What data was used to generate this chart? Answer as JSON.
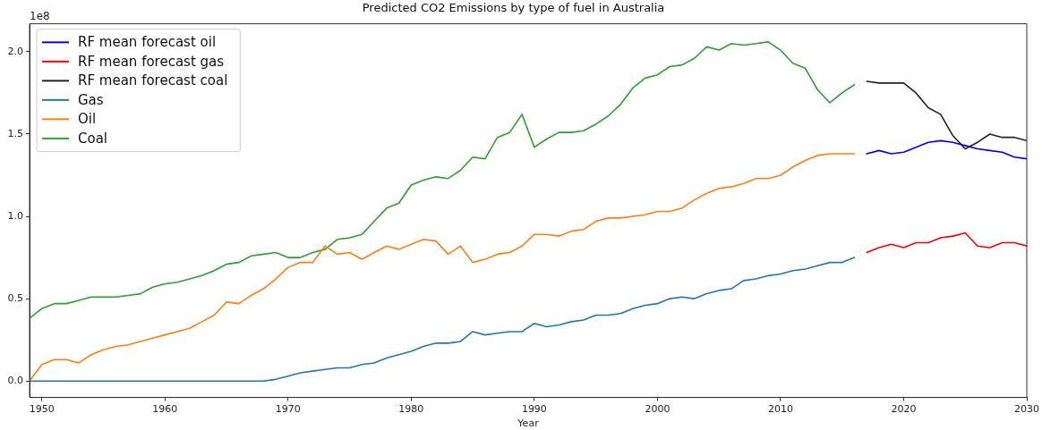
{
  "chart_data": {
    "type": "line",
    "title": "Predicted CO2 Emissions by type of fuel in Australia",
    "xlabel": "Year",
    "annotations": [
      "1e8"
    ],
    "xlim": [
      1949,
      2030
    ],
    "xticks": [
      1950,
      1960,
      1970,
      1980,
      1990,
      2000,
      2010,
      2020,
      2030
    ],
    "ylim": [
      -0.1,
      2.17
    ],
    "yticks": [
      {
        "value": 0,
        "label": "0.0"
      },
      {
        "value": 0.5,
        "label": "0.5"
      },
      {
        "value": 1,
        "label": "1.0"
      },
      {
        "value": 1.5,
        "label": "1.5"
      },
      {
        "value": 2,
        "label": "2.0"
      }
    ],
    "grid": false,
    "legend": "top left",
    "marker": "none",
    "line_style": "solid",
    "x": [
      1949,
      1950,
      1951,
      1952,
      1953,
      1954,
      1955,
      1956,
      1957,
      1958,
      1959,
      1960,
      1961,
      1962,
      1963,
      1964,
      1965,
      1966,
      1967,
      1968,
      1969,
      1970,
      1971,
      1972,
      1973,
      1974,
      1975,
      1976,
      1977,
      1978,
      1979,
      1980,
      1981,
      1982,
      1983,
      1984,
      1985,
      1986,
      1987,
      1988,
      1989,
      1990,
      1991,
      1992,
      1993,
      1994,
      1995,
      1996,
      1997,
      1998,
      1999,
      2000,
      2001,
      2002,
      2003,
      2004,
      2005,
      2006,
      2007,
      2008,
      2009,
      2010,
      2011,
      2012,
      2013,
      2014,
      2015,
      2016
    ],
    "series": [
      {
        "name": "RF mean forecast oil",
        "color": "#0000ff",
        "x": [
          2017,
          2018,
          2019,
          2020,
          2021,
          2022,
          2023,
          2024,
          2025,
          2026,
          2027,
          2028,
          2029,
          2030
        ],
        "values": [
          1.38,
          1.4,
          1.38,
          1.39,
          1.42,
          1.45,
          1.46,
          1.45,
          1.43,
          1.41,
          1.4,
          1.39,
          1.36,
          1.35
        ]
      },
      {
        "name": "RF mean forecast gas",
        "color": "#ff0000",
        "x": [
          2017,
          2018,
          2019,
          2020,
          2021,
          2022,
          2023,
          2024,
          2025,
          2026,
          2027,
          2028,
          2029,
          2030
        ],
        "values": [
          0.78,
          0.81,
          0.83,
          0.81,
          0.84,
          0.84,
          0.87,
          0.88,
          0.9,
          0.82,
          0.81,
          0.84,
          0.84,
          0.82
        ]
      },
      {
        "name": "RF mean forecast coal",
        "color": "#222222",
        "x": [
          2017,
          2018,
          2019,
          2020,
          2021,
          2022,
          2023,
          2024,
          2025,
          2026,
          2027,
          2028,
          2029,
          2030
        ],
        "values": [
          1.82,
          1.81,
          1.81,
          1.81,
          1.75,
          1.66,
          1.62,
          1.49,
          1.41,
          1.45,
          1.5,
          1.48,
          1.48,
          1.46
        ]
      },
      {
        "name": "Gas",
        "color": "#1f77b4",
        "values": [
          0,
          0,
          0,
          0,
          0,
          0,
          0,
          0,
          0,
          0,
          0,
          0,
          0,
          0,
          0,
          0,
          0,
          0,
          0,
          0,
          0.01,
          0.03,
          0.05,
          0.06,
          0.07,
          0.08,
          0.08,
          0.1,
          0.11,
          0.14,
          0.16,
          0.18,
          0.21,
          0.23,
          0.23,
          0.24,
          0.3,
          0.28,
          0.29,
          0.3,
          0.3,
          0.35,
          0.33,
          0.34,
          0.36,
          0.37,
          0.4,
          0.4,
          0.41,
          0.44,
          0.46,
          0.47,
          0.5,
          0.51,
          0.5,
          0.53,
          0.55,
          0.56,
          0.61,
          0.62,
          0.64,
          0.65,
          0.67,
          0.68,
          0.7,
          0.72,
          0.72,
          0.75
        ]
      },
      {
        "name": "Oil",
        "color": "#ff7f0e",
        "values": [
          0,
          0.1,
          0.13,
          0.13,
          0.11,
          0.16,
          0.19,
          0.21,
          0.22,
          0.24,
          0.26,
          0.28,
          0.3,
          0.32,
          0.36,
          0.4,
          0.48,
          0.47,
          0.52,
          0.56,
          0.62,
          0.69,
          0.72,
          0.72,
          0.82,
          0.77,
          0.78,
          0.74,
          0.78,
          0.82,
          0.8,
          0.83,
          0.86,
          0.85,
          0.77,
          0.82,
          0.72,
          0.74,
          0.77,
          0.78,
          0.82,
          0.89,
          0.89,
          0.88,
          0.91,
          0.92,
          0.97,
          0.99,
          0.99,
          1.0,
          1.01,
          1.03,
          1.03,
          1.05,
          1.1,
          1.14,
          1.17,
          1.18,
          1.2,
          1.23,
          1.23,
          1.25,
          1.3,
          1.34,
          1.37,
          1.38,
          1.38,
          1.38
        ]
      },
      {
        "name": "Coal",
        "color": "#2ca02c",
        "values": [
          0.38,
          0.44,
          0.47,
          0.47,
          0.49,
          0.51,
          0.51,
          0.51,
          0.52,
          0.53,
          0.57,
          0.59,
          0.6,
          0.62,
          0.64,
          0.67,
          0.71,
          0.72,
          0.76,
          0.77,
          0.78,
          0.75,
          0.75,
          0.78,
          0.8,
          0.86,
          0.87,
          0.89,
          0.97,
          1.05,
          1.08,
          1.19,
          1.22,
          1.24,
          1.23,
          1.28,
          1.36,
          1.35,
          1.48,
          1.51,
          1.62,
          1.42,
          1.47,
          1.51,
          1.51,
          1.52,
          1.56,
          1.61,
          1.68,
          1.78,
          1.84,
          1.86,
          1.91,
          1.92,
          1.96,
          2.03,
          2.01,
          2.05,
          2.04,
          2.05,
          2.06,
          2.01,
          1.93,
          1.9,
          1.77,
          1.69,
          1.75,
          1.8
        ]
      }
    ]
  }
}
